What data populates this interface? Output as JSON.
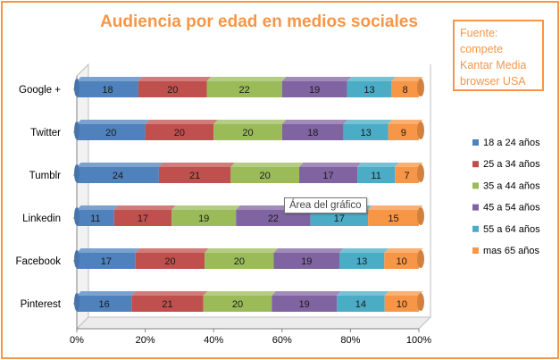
{
  "chart_data": {
    "type": "bar",
    "orientation": "horizontal",
    "stacked": "percent",
    "title": "Audiencia por edad en medios sociales",
    "categories": [
      "Google +",
      "Twitter",
      "Tumblr",
      "Linkedin",
      "Facebook",
      "Pinterest"
    ],
    "series": [
      {
        "name": "18 a 24 años",
        "color": "#4f81bd",
        "values": [
          18,
          20,
          24,
          11,
          17,
          16
        ]
      },
      {
        "name": "25 a 34 años",
        "color": "#c0504d",
        "values": [
          20,
          20,
          21,
          17,
          20,
          21
        ]
      },
      {
        "name": "35 a 44 años",
        "color": "#9bbb59",
        "values": [
          22,
          20,
          20,
          19,
          20,
          20
        ]
      },
      {
        "name": "45 a 54 años",
        "color": "#8064a2",
        "values": [
          19,
          18,
          17,
          22,
          19,
          19
        ]
      },
      {
        "name": "55 a 64 años",
        "color": "#4bacc6",
        "values": [
          13,
          13,
          11,
          17,
          13,
          14
        ]
      },
      {
        "name": "mas 65 años",
        "color": "#f79646",
        "values": [
          8,
          9,
          7,
          15,
          10,
          10
        ]
      }
    ],
    "xticks": [
      "0%",
      "20%",
      "40%",
      "60%",
      "80%",
      "100%"
    ],
    "xlim": [
      0,
      100
    ],
    "legend_position": "right",
    "grid": false,
    "accent_color": "#f79646"
  },
  "source_lines": [
    "Fuente:",
    "compete",
    "Kantar Media",
    "browser USA"
  ],
  "tooltip": "Área del gráfico"
}
